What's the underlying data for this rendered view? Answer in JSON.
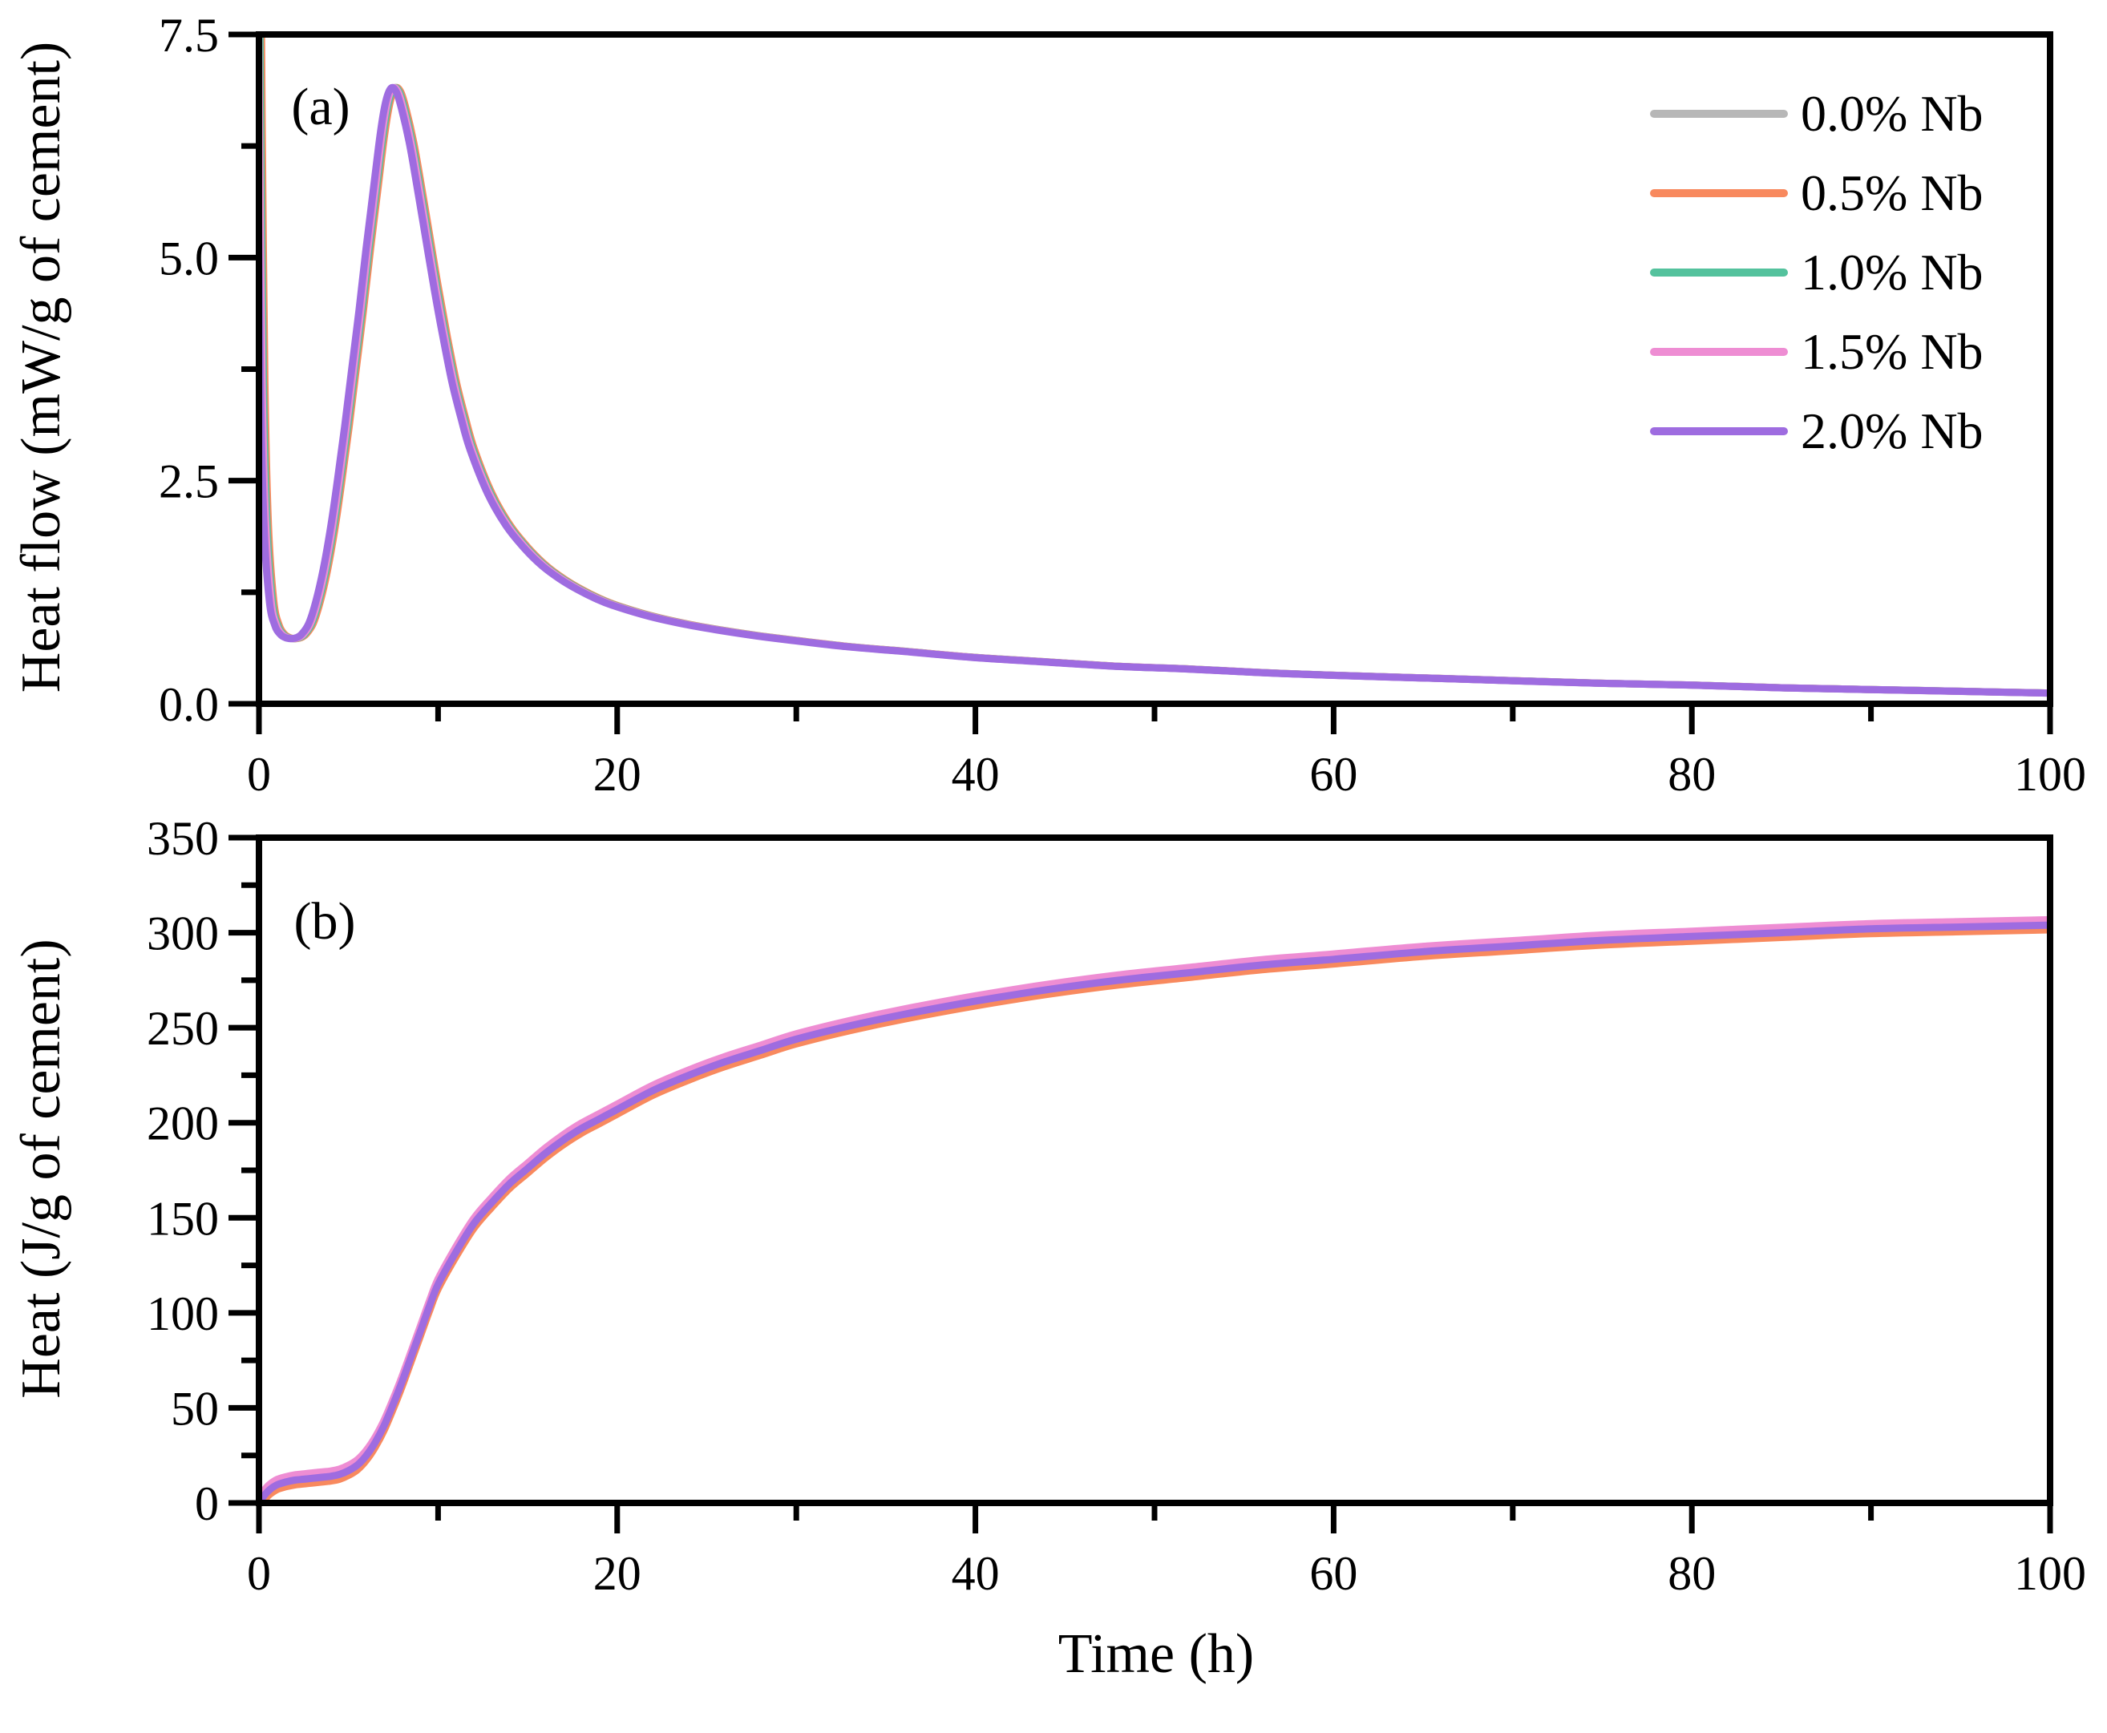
{
  "figure": {
    "background": "#ffffff",
    "text_color": "#000000",
    "xlabel_shared": "Time (h)"
  },
  "legend": {
    "position": "upper right",
    "items": [
      {
        "label": "0.0% Nb",
        "color": "#b7b7b7"
      },
      {
        "label": "0.5% Nb",
        "color": "#f8895e"
      },
      {
        "label": "1.0% Nb",
        "color": "#54c29d"
      },
      {
        "label": "1.5% Nb",
        "color": "#ee8dd3"
      },
      {
        "label": "2.0% Nb",
        "color": "#9e6ce0"
      }
    ]
  },
  "chart_data": [
    {
      "type": "line",
      "panel_label": "(a)",
      "ylabel": "Heat flow (mW/g of cement)",
      "xlabel": "",
      "xlim": [
        0,
        100
      ],
      "ylim": [
        0,
        7.5
      ],
      "grid": false,
      "xticks": {
        "major": [
          0,
          20,
          40,
          60,
          80,
          100
        ],
        "labels": [
          "0",
          "20",
          "40",
          "60",
          "80",
          "100"
        ],
        "minor": [
          10,
          30,
          50,
          70,
          90
        ]
      },
      "yticks": {
        "major": [
          0,
          2.5,
          5,
          7.5
        ],
        "labels": [
          "0.0",
          "2.5",
          "5.0",
          "7.5"
        ],
        "minor": [
          1.25,
          3.75,
          6.25
        ]
      },
      "x": [
        0.08,
        0.15,
        0.3,
        0.5,
        0.8,
        1.1,
        1.4,
        1.7,
        2.0,
        2.3,
        2.6,
        3.0,
        3.4,
        3.8,
        4.2,
        4.6,
        5.0,
        5.4,
        5.8,
        6.2,
        6.6,
        7.0,
        7.3,
        7.6,
        7.9,
        8.2,
        8.6,
        9.0,
        9.5,
        10.0,
        10.5,
        11.0,
        11.5,
        12.0,
        13.0,
        14.0,
        15.0,
        16.0,
        17.0,
        18.0,
        19.0,
        20.0,
        22,
        24,
        26,
        28,
        30,
        33,
        36,
        40,
        44,
        48,
        52,
        56,
        60,
        65,
        70,
        75,
        80,
        85,
        90,
        95,
        100
      ],
      "base_values": [
        8.2,
        6.5,
        3.6,
        2.0,
        1.15,
        0.88,
        0.78,
        0.74,
        0.73,
        0.74,
        0.78,
        0.9,
        1.15,
        1.5,
        1.95,
        2.5,
        3.1,
        3.75,
        4.4,
        5.1,
        5.75,
        6.4,
        6.75,
        6.9,
        6.85,
        6.65,
        6.3,
        5.85,
        5.25,
        4.65,
        4.1,
        3.6,
        3.2,
        2.85,
        2.35,
        2.0,
        1.75,
        1.55,
        1.4,
        1.28,
        1.18,
        1.1,
        0.98,
        0.89,
        0.82,
        0.76,
        0.71,
        0.64,
        0.59,
        0.52,
        0.47,
        0.42,
        0.39,
        0.35,
        0.32,
        0.29,
        0.26,
        0.23,
        0.21,
        0.18,
        0.16,
        0.14,
        0.12
      ],
      "series": [
        {
          "name": "0.0% Nb",
          "color": "#b7b7b7",
          "dx": 0,
          "dy": 0
        },
        {
          "name": "0.5% Nb",
          "color": "#f8895e",
          "dx": 0.03,
          "dy": 0
        },
        {
          "name": "1.0% Nb",
          "color": "#54c29d",
          "dx": -0.05,
          "dy": 0
        },
        {
          "name": "1.5% Nb",
          "color": "#ee8dd3",
          "dx": -0.12,
          "dy": 0
        },
        {
          "name": "2.0% Nb",
          "color": "#9e6ce0",
          "dx": -0.22,
          "dy": 0
        }
      ],
      "annotations": {
        "peak_value": 6.9,
        "peak_time_h": 7.6,
        "dormant_minimum": 0.73,
        "initial_spike_clipped_at": 7.5
      }
    },
    {
      "type": "line",
      "panel_label": "(b)",
      "ylabel": "Heat (J/g of cement)",
      "xlabel": "Time (h)",
      "xlim": [
        0,
        100
      ],
      "ylim": [
        0,
        350
      ],
      "grid": false,
      "xticks": {
        "major": [
          0,
          20,
          40,
          60,
          80,
          100
        ],
        "labels": [
          "0",
          "20",
          "40",
          "60",
          "80",
          "100"
        ],
        "minor": [
          10,
          30,
          50,
          70,
          90
        ]
      },
      "yticks": {
        "major": [
          0,
          50,
          100,
          150,
          200,
          250,
          300,
          350
        ],
        "labels": [
          "0",
          "50",
          "100",
          "150",
          "200",
          "250",
          "300",
          "350"
        ],
        "minor": [
          25,
          75,
          125,
          175,
          225,
          275,
          325
        ]
      },
      "x": [
        0,
        0.3,
        0.6,
        1.0,
        1.5,
        2,
        2.5,
        3,
        3.5,
        4,
        4.5,
        5,
        5.5,
        6,
        6.5,
        7,
        7.5,
        8,
        8.5,
        9,
        9.5,
        10,
        11,
        12,
        13,
        14,
        15,
        16,
        17,
        18,
        19,
        20,
        22,
        24,
        26,
        28,
        30,
        33,
        36,
        40,
        44,
        48,
        52,
        56,
        60,
        65,
        70,
        75,
        80,
        85,
        90,
        95,
        100
      ],
      "base_values": [
        0,
        4,
        7,
        9.5,
        11,
        12,
        12.5,
        13,
        13.5,
        14,
        15,
        17,
        20,
        25,
        32,
        41,
        52,
        64,
        77,
        90,
        103,
        115,
        132,
        147,
        158,
        168,
        176,
        184,
        191,
        197,
        202,
        207,
        217,
        225,
        232,
        238,
        244,
        251,
        257,
        264,
        270,
        275,
        279,
        283,
        286,
        290,
        293,
        296,
        298,
        300,
        302,
        303,
        304
      ],
      "series": [
        {
          "name": "0.0% Nb",
          "color": "#b7b7b7",
          "dx": 0,
          "dy": -1.0
        },
        {
          "name": "0.5% Nb",
          "color": "#f8895e",
          "dx": 0,
          "dy": -2.5
        },
        {
          "name": "1.0% Nb",
          "color": "#54c29d",
          "dx": 0,
          "dy": 1.2
        },
        {
          "name": "1.5% Nb",
          "color": "#ee8dd3",
          "dx": 0,
          "dy": 2.8
        },
        {
          "name": "2.0% Nb",
          "color": "#9e6ce0",
          "dx": 0,
          "dy": 0
        }
      ],
      "annotations": {
        "final_heat_range_J_per_g": [
          298,
          305
        ],
        "early_plateau_J_per_g": 13
      }
    }
  ]
}
